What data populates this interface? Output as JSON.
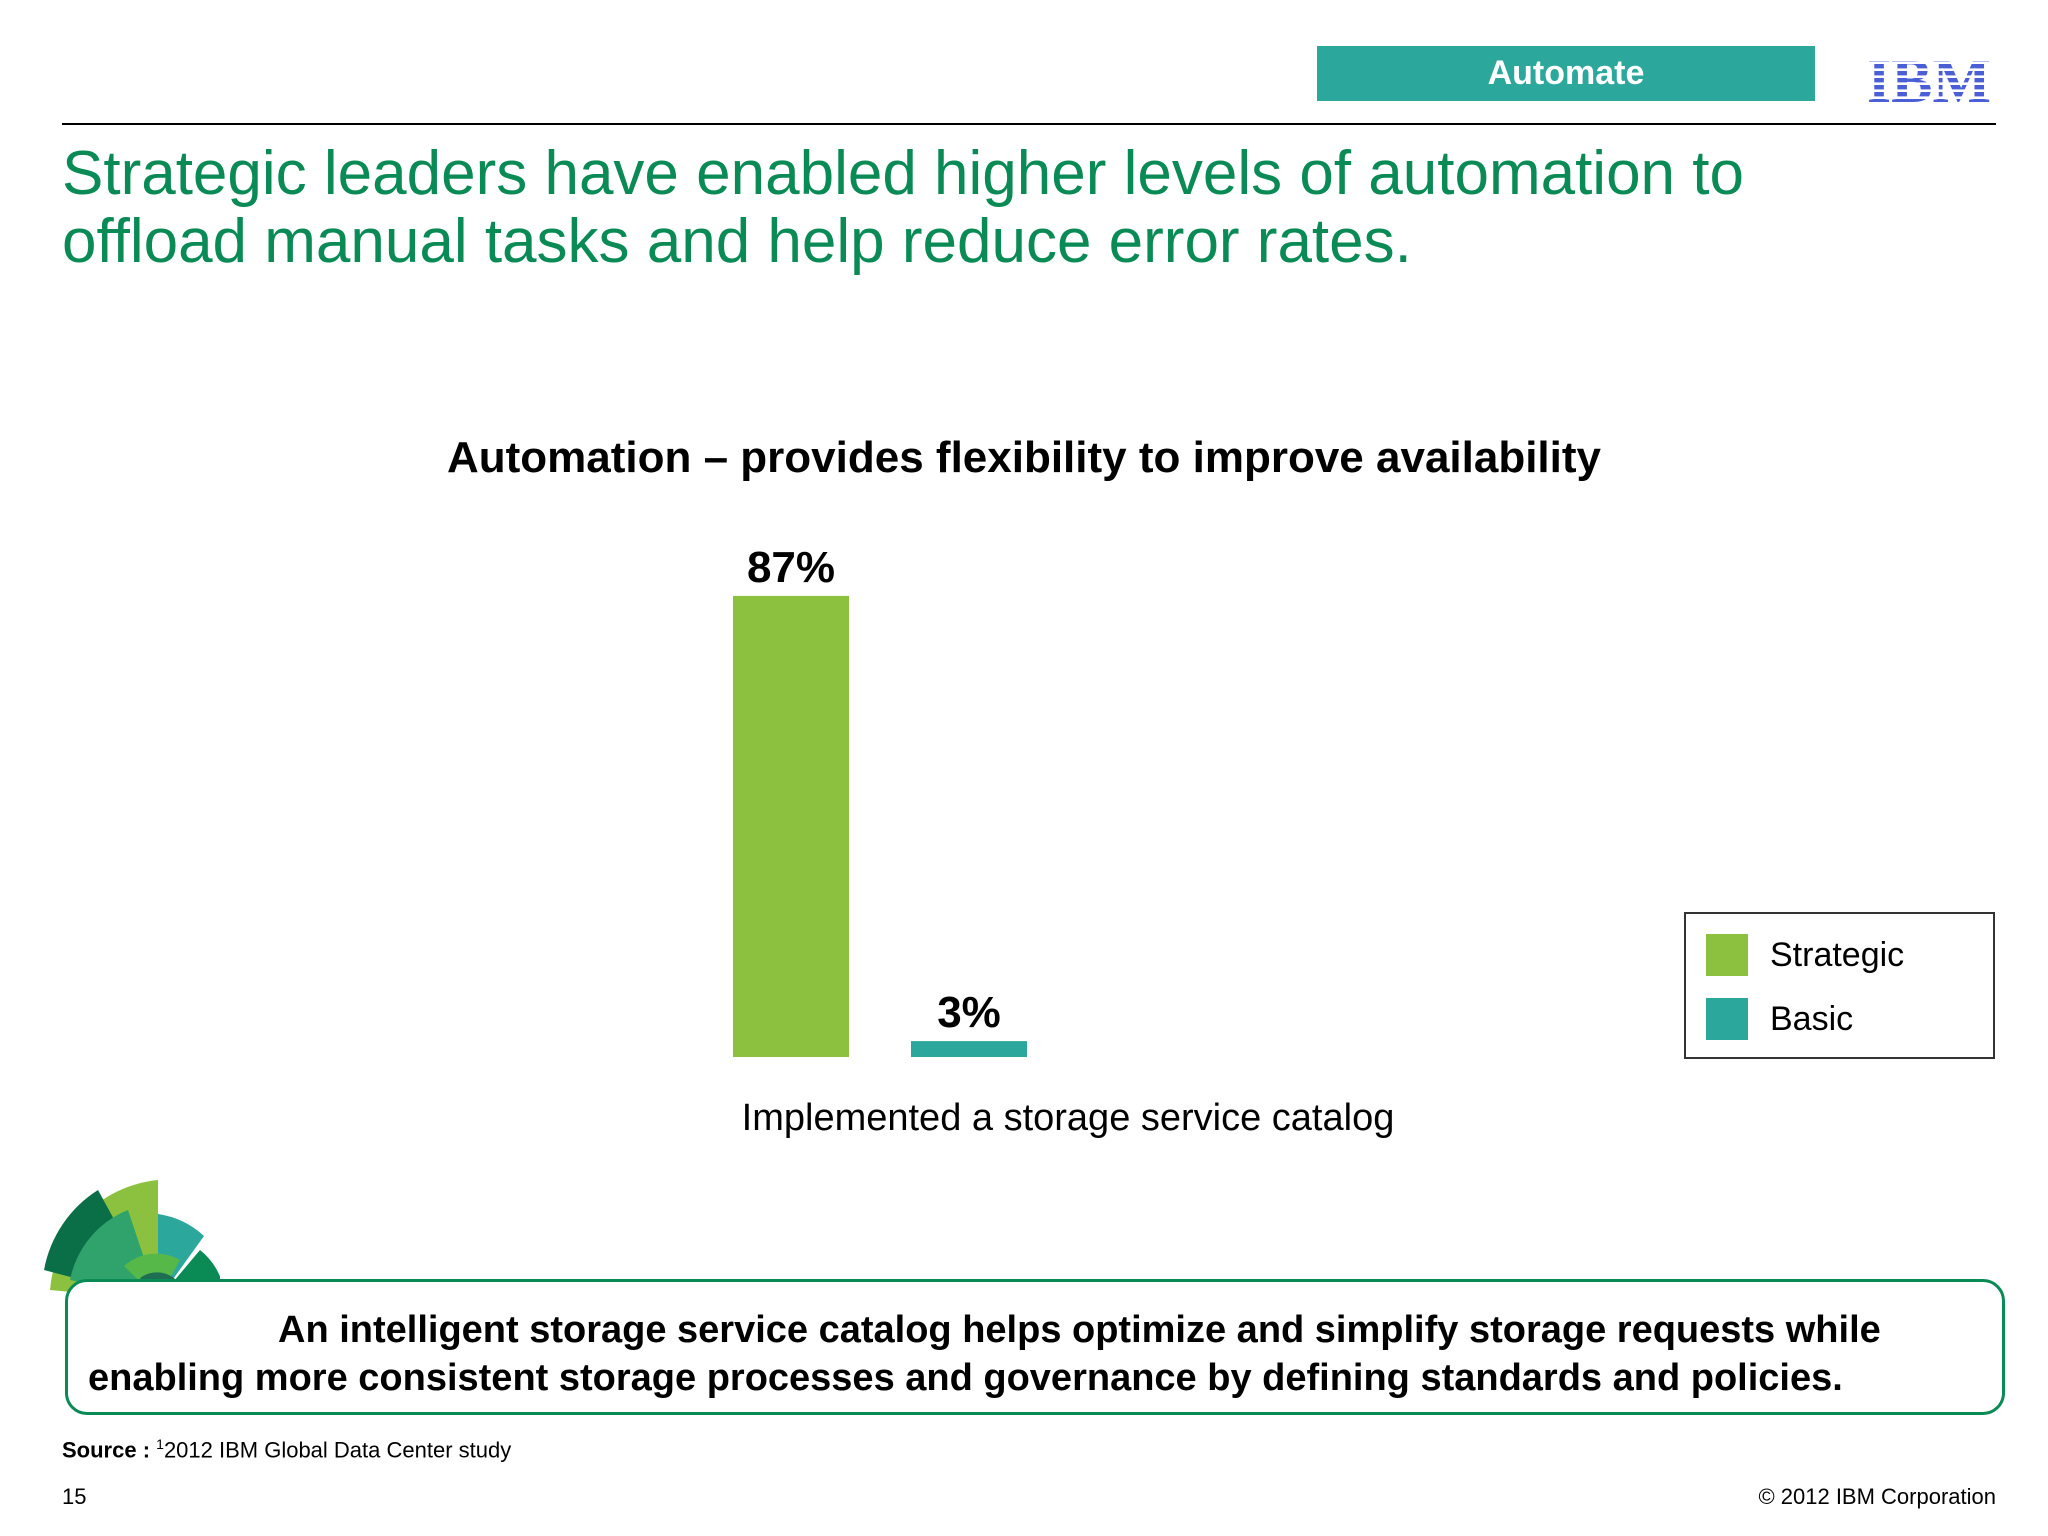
{
  "header": {
    "tag_label": "Automate",
    "logo_text": "IBM"
  },
  "slide": {
    "title": "Strategic leaders have enabled higher levels of automation to offload manual tasks and help reduce error rates.",
    "callout": "An intelligent storage service catalog helps optimize and simplify storage requests while enabling more consistent storage processes and governance by defining standards and policies.",
    "source_prefix": "Source : ",
    "source_sup": "1",
    "source_text": "2012 IBM Global Data Center study",
    "page_number": "15",
    "copyright": "© 2012 IBM Corporation"
  },
  "colors": {
    "strategic": "#8cc03f",
    "basic": "#2ba79c",
    "title_green": "#0a8a55"
  },
  "chart_data": {
    "type": "bar",
    "title": "Automation – provides flexibility to improve availability",
    "categories": [
      "Implemented a storage service catalog"
    ],
    "series": [
      {
        "name": "Strategic",
        "values": [
          87
        ],
        "label": "87%",
        "color": "#8cc03f"
      },
      {
        "name": "Basic",
        "values": [
          3
        ],
        "label": "3%",
        "color": "#2ba79c"
      }
    ],
    "ylim": [
      0,
      100
    ],
    "unit": "%",
    "legend": "right",
    "grid": false
  }
}
